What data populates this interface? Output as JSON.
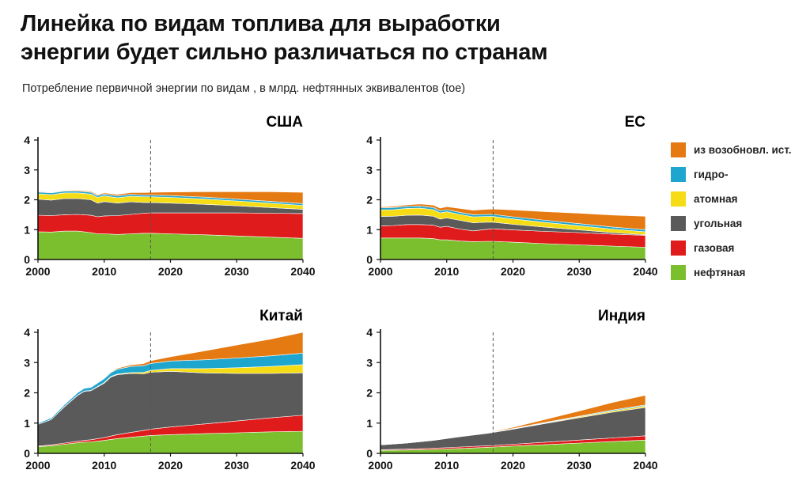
{
  "header": {
    "title_line1": "Линейка по видам топлива для выработки",
    "title_line2": "энергии будет сильно различаться по странам",
    "subtitle": "Потребление первичной энергии по видам , в млрд. нефтянных эквивалентов (toe)"
  },
  "legend": {
    "items": [
      {
        "key": "renew",
        "label": "из возобновл. ист.",
        "color": "#e57a12"
      },
      {
        "key": "hydro",
        "label": "гидро-",
        "color": "#1fa6cf"
      },
      {
        "key": "nuclear",
        "label": "атомная",
        "color": "#f5dc14"
      },
      {
        "key": "coal",
        "label": "угольная",
        "color": "#5a5a5a"
      },
      {
        "key": "gas",
        "label": "газовая",
        "color": "#e01b1b"
      },
      {
        "key": "oil",
        "label": "нефтяная",
        "color": "#7cbf2e"
      }
    ]
  },
  "chart_data": [
    {
      "type": "area",
      "stacked": true,
      "title": "США",
      "x_ticks": [
        "2000",
        "2010",
        "2020",
        "2030",
        "2040"
      ],
      "y_ticks": [
        "0",
        "1",
        "2",
        "3",
        "4"
      ],
      "xlim": [
        2000,
        2040
      ],
      "ylim": [
        0,
        4
      ],
      "forecast_start": 2017,
      "x": [
        2000,
        2002,
        2004,
        2006,
        2008,
        2009,
        2010,
        2012,
        2014,
        2016,
        2017,
        2020,
        2025,
        2030,
        2035,
        2040
      ],
      "series": [
        {
          "key": "oil",
          "values": [
            0.93,
            0.92,
            0.95,
            0.95,
            0.9,
            0.86,
            0.86,
            0.84,
            0.86,
            0.88,
            0.88,
            0.86,
            0.83,
            0.79,
            0.75,
            0.71
          ]
        },
        {
          "key": "gas",
          "values": [
            0.55,
            0.55,
            0.55,
            0.56,
            0.58,
            0.57,
            0.6,
            0.63,
            0.65,
            0.67,
            0.68,
            0.7,
            0.73,
            0.77,
            0.8,
            0.83
          ]
        },
        {
          "key": "coal",
          "values": [
            0.54,
            0.52,
            0.54,
            0.53,
            0.52,
            0.46,
            0.48,
            0.42,
            0.42,
            0.36,
            0.35,
            0.33,
            0.29,
            0.24,
            0.19,
            0.14
          ]
        },
        {
          "key": "nuclear",
          "values": [
            0.18,
            0.18,
            0.19,
            0.19,
            0.19,
            0.19,
            0.19,
            0.18,
            0.19,
            0.19,
            0.19,
            0.19,
            0.18,
            0.16,
            0.15,
            0.13
          ]
        },
        {
          "key": "hydro",
          "values": [
            0.06,
            0.06,
            0.06,
            0.06,
            0.06,
            0.06,
            0.06,
            0.06,
            0.06,
            0.06,
            0.06,
            0.06,
            0.06,
            0.06,
            0.06,
            0.06
          ]
        },
        {
          "key": "renew",
          "values": [
            0.02,
            0.02,
            0.02,
            0.03,
            0.03,
            0.03,
            0.04,
            0.05,
            0.06,
            0.08,
            0.09,
            0.12,
            0.18,
            0.25,
            0.32,
            0.38
          ]
        }
      ]
    },
    {
      "type": "area",
      "stacked": true,
      "title": "ЕС",
      "x_ticks": [
        "2000",
        "2010",
        "2020",
        "2030",
        "2040"
      ],
      "y_ticks": [
        "0",
        "1",
        "2",
        "3",
        "4"
      ],
      "xlim": [
        2000,
        2040
      ],
      "ylim": [
        0,
        4
      ],
      "forecast_start": 2017,
      "x": [
        2000,
        2002,
        2004,
        2006,
        2008,
        2009,
        2010,
        2012,
        2014,
        2016,
        2017,
        2020,
        2025,
        2030,
        2035,
        2040
      ],
      "series": [
        {
          "key": "oil",
          "values": [
            0.72,
            0.72,
            0.72,
            0.72,
            0.7,
            0.66,
            0.66,
            0.62,
            0.6,
            0.61,
            0.61,
            0.58,
            0.53,
            0.49,
            0.45,
            0.41
          ]
        },
        {
          "key": "gas",
          "values": [
            0.4,
            0.42,
            0.45,
            0.45,
            0.45,
            0.42,
            0.45,
            0.4,
            0.36,
            0.4,
            0.42,
            0.41,
            0.41,
            0.41,
            0.4,
            0.4
          ]
        },
        {
          "key": "coal",
          "values": [
            0.32,
            0.31,
            0.31,
            0.32,
            0.3,
            0.27,
            0.28,
            0.29,
            0.27,
            0.24,
            0.22,
            0.19,
            0.14,
            0.09,
            0.05,
            0.02
          ]
        },
        {
          "key": "nuclear",
          "values": [
            0.22,
            0.22,
            0.23,
            0.23,
            0.22,
            0.21,
            0.21,
            0.2,
            0.2,
            0.19,
            0.19,
            0.18,
            0.16,
            0.14,
            0.12,
            0.1
          ]
        },
        {
          "key": "hydro",
          "values": [
            0.07,
            0.07,
            0.07,
            0.07,
            0.07,
            0.07,
            0.07,
            0.07,
            0.07,
            0.07,
            0.07,
            0.07,
            0.07,
            0.07,
            0.07,
            0.07
          ]
        },
        {
          "key": "renew",
          "values": [
            0.03,
            0.04,
            0.05,
            0.07,
            0.08,
            0.09,
            0.1,
            0.13,
            0.15,
            0.17,
            0.18,
            0.23,
            0.29,
            0.35,
            0.4,
            0.45
          ]
        }
      ]
    },
    {
      "type": "area",
      "stacked": true,
      "title": "Китай",
      "x_ticks": [
        "2000",
        "2010",
        "2020",
        "2030",
        "2040"
      ],
      "y_ticks": [
        "0",
        "1",
        "2",
        "3",
        "4"
      ],
      "xlim": [
        2000,
        2040
      ],
      "ylim": [
        0,
        4
      ],
      "forecast_start": 2017,
      "x": [
        2000,
        2002,
        2004,
        2006,
        2007,
        2008,
        2010,
        2011,
        2012,
        2014,
        2016,
        2017,
        2020,
        2025,
        2030,
        2035,
        2040
      ],
      "series": [
        {
          "key": "oil",
          "values": [
            0.22,
            0.25,
            0.3,
            0.35,
            0.37,
            0.38,
            0.43,
            0.46,
            0.49,
            0.53,
            0.57,
            0.59,
            0.62,
            0.65,
            0.68,
            0.71,
            0.73
          ]
        },
        {
          "key": "gas",
          "values": [
            0.02,
            0.03,
            0.04,
            0.05,
            0.06,
            0.07,
            0.09,
            0.11,
            0.13,
            0.16,
            0.19,
            0.21,
            0.25,
            0.32,
            0.39,
            0.46,
            0.53
          ]
        },
        {
          "key": "coal",
          "values": [
            0.72,
            0.84,
            1.2,
            1.52,
            1.62,
            1.62,
            1.8,
            1.95,
            1.98,
            1.95,
            1.87,
            1.88,
            1.84,
            1.69,
            1.57,
            1.47,
            1.4
          ]
        },
        {
          "key": "nuclear",
          "values": [
            0.0,
            0.0,
            0.01,
            0.01,
            0.01,
            0.01,
            0.02,
            0.02,
            0.02,
            0.03,
            0.05,
            0.06,
            0.09,
            0.14,
            0.19,
            0.23,
            0.27
          ]
        },
        {
          "key": "hydro",
          "values": [
            0.04,
            0.05,
            0.06,
            0.08,
            0.09,
            0.1,
            0.13,
            0.13,
            0.16,
            0.2,
            0.22,
            0.23,
            0.25,
            0.29,
            0.32,
            0.35,
            0.38
          ]
        },
        {
          "key": "renew",
          "values": [
            0.0,
            0.0,
            0.0,
            0.0,
            0.01,
            0.01,
            0.02,
            0.02,
            0.03,
            0.05,
            0.07,
            0.09,
            0.14,
            0.29,
            0.43,
            0.55,
            0.69
          ]
        }
      ]
    },
    {
      "type": "area",
      "stacked": true,
      "title": "Индия",
      "x_ticks": [
        "2000",
        "2010",
        "2020",
        "2030",
        "2040"
      ],
      "y_ticks": [
        "0",
        "1",
        "2",
        "3",
        "4"
      ],
      "xlim": [
        2000,
        2040
      ],
      "ylim": [
        0,
        4
      ],
      "forecast_start": 2017,
      "x": [
        2000,
        2004,
        2008,
        2012,
        2016,
        2017,
        2020,
        2025,
        2030,
        2035,
        2040
      ],
      "series": [
        {
          "key": "oil",
          "values": [
            0.1,
            0.11,
            0.13,
            0.16,
            0.2,
            0.21,
            0.24,
            0.29,
            0.34,
            0.39,
            0.44
          ]
        },
        {
          "key": "gas",
          "values": [
            0.02,
            0.03,
            0.04,
            0.05,
            0.05,
            0.05,
            0.06,
            0.08,
            0.1,
            0.12,
            0.14
          ]
        },
        {
          "key": "coal",
          "values": [
            0.16,
            0.2,
            0.26,
            0.34,
            0.41,
            0.43,
            0.5,
            0.62,
            0.74,
            0.85,
            0.94
          ]
        },
        {
          "key": "nuclear",
          "values": [
            0.0,
            0.0,
            0.0,
            0.01,
            0.01,
            0.01,
            0.01,
            0.02,
            0.03,
            0.04,
            0.05
          ]
        },
        {
          "key": "hydro",
          "values": [
            0.01,
            0.01,
            0.01,
            0.01,
            0.01,
            0.01,
            0.01,
            0.02,
            0.02,
            0.03,
            0.03
          ]
        },
        {
          "key": "renew",
          "values": [
            0.0,
            0.0,
            0.0,
            0.0,
            0.01,
            0.02,
            0.04,
            0.1,
            0.17,
            0.25,
            0.32
          ]
        }
      ]
    }
  ]
}
